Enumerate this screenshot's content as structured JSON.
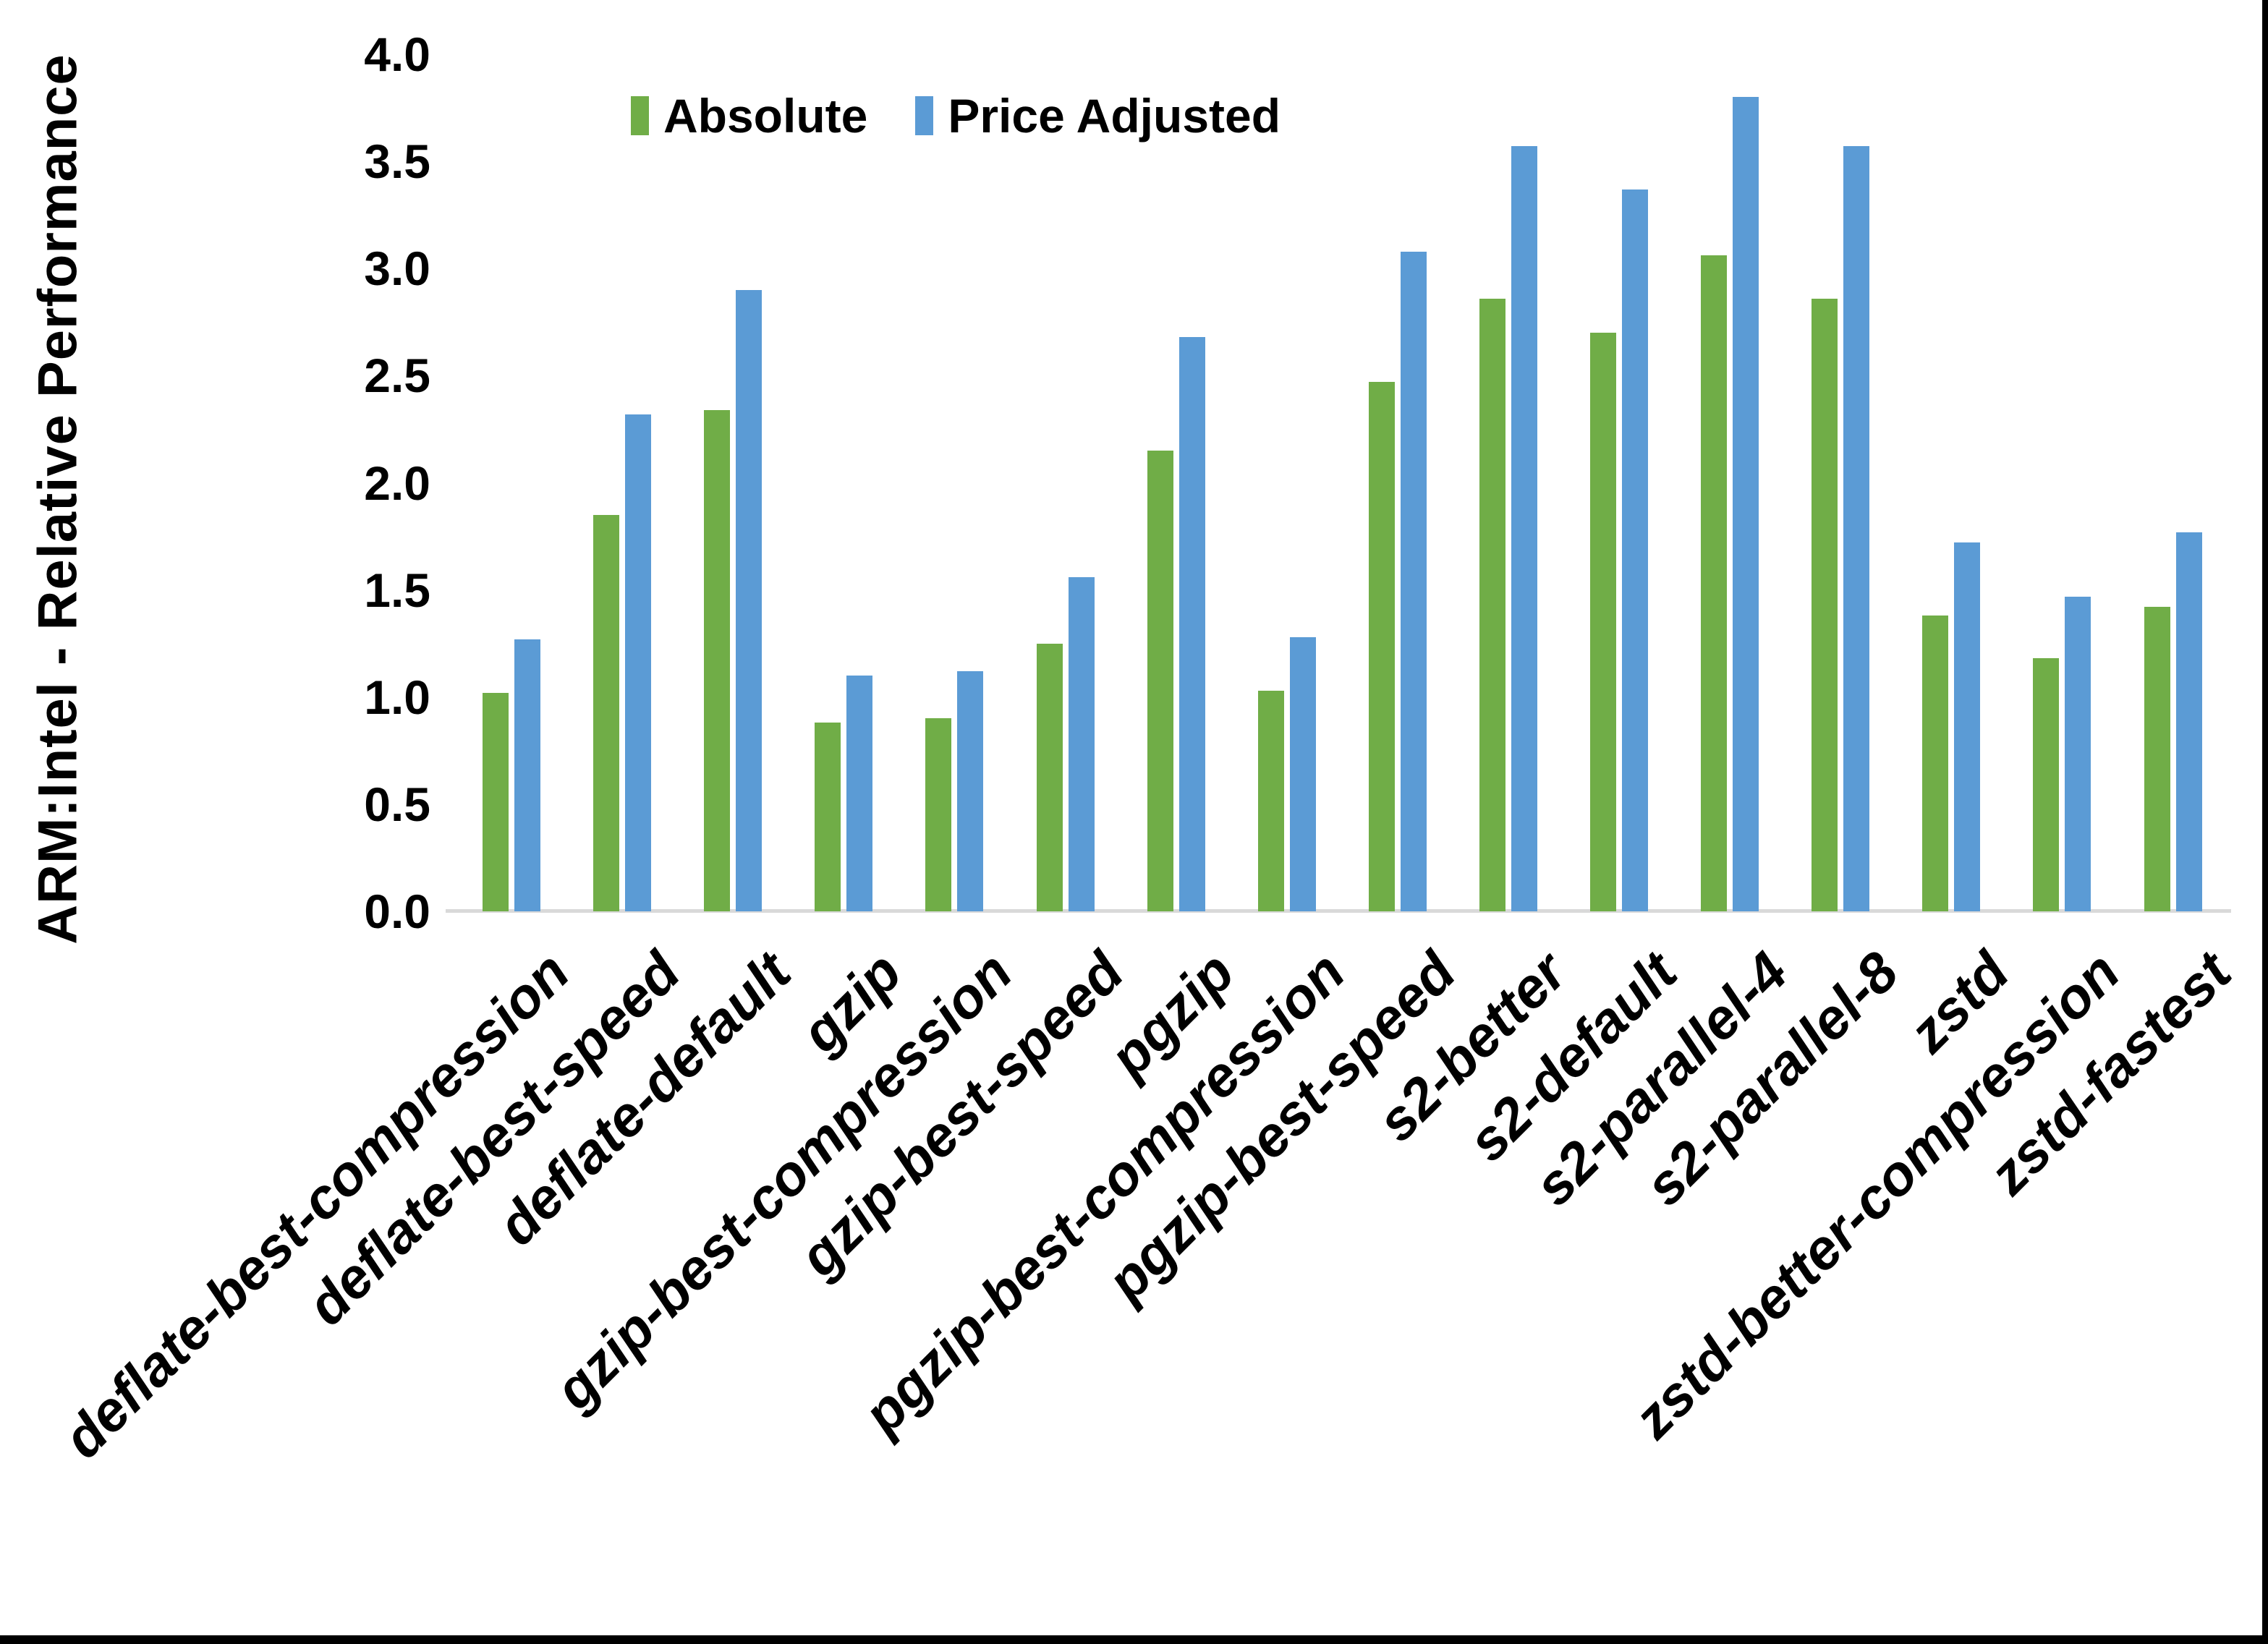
{
  "chart_data": {
    "type": "bar",
    "title": "",
    "xlabel": "",
    "ylabel": "ARM:Intel - Relative Performance",
    "ylim": [
      0,
      4
    ],
    "ytick_step": 0.5,
    "ytick_labels": [
      "0.0",
      "0.5",
      "1.0",
      "1.5",
      "2.0",
      "2.5",
      "3.0",
      "3.5",
      "4.0"
    ],
    "grid": false,
    "legend_position": "top",
    "axis_line_color": "#d9d9d9",
    "text_color": "#000000",
    "categories": [
      "deflate-best-compression",
      "deflate-best-speed",
      "deflate-default",
      "gzip",
      "gzip-best-compression",
      "gzip-best-speed",
      "pgzip",
      "pgzip-best-compression",
      "pgzip-best-speed",
      "s2-better",
      "s2-default",
      "s2-parallel-4",
      "s2-parallel-8",
      "zstd",
      "zstd-better-compression",
      "zstd-fastest"
    ],
    "series": [
      {
        "name": "Absolute",
        "color": "#70AD47",
        "values": [
          1.02,
          1.85,
          2.34,
          0.88,
          0.9,
          1.25,
          2.15,
          1.03,
          2.47,
          2.86,
          2.7,
          3.06,
          2.86,
          1.38,
          1.18,
          1.42
        ]
      },
      {
        "name": "Price Adjusted",
        "color": "#5B9BD5",
        "values": [
          1.27,
          2.32,
          2.9,
          1.1,
          1.12,
          1.56,
          2.68,
          1.28,
          3.08,
          3.57,
          3.37,
          3.8,
          3.57,
          1.72,
          1.47,
          1.77
        ]
      }
    ]
  }
}
